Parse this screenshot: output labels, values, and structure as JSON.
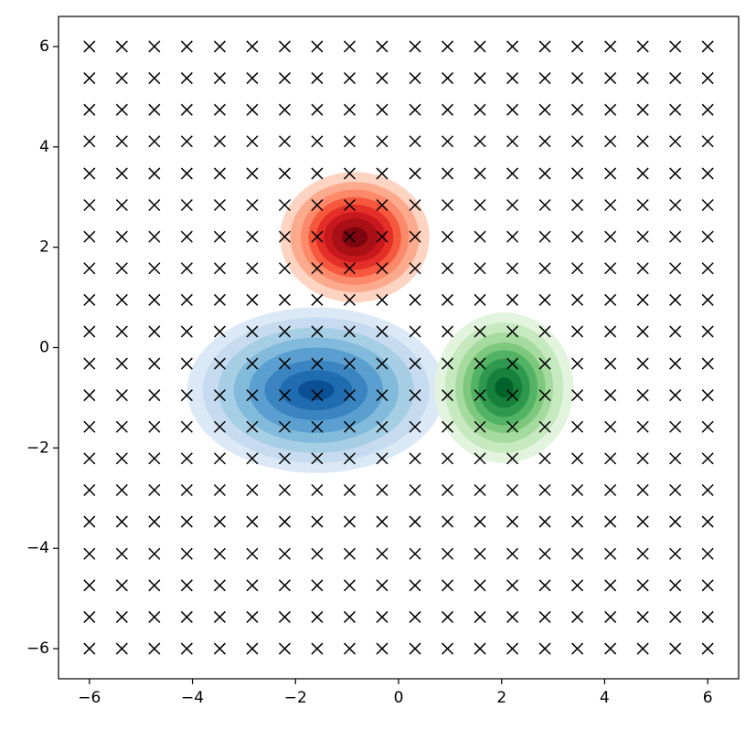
{
  "chart_data": {
    "type": "contour-scatter",
    "xlim": [
      -6.6,
      6.6
    ],
    "ylim": [
      -6.6,
      6.6
    ],
    "xticks": [
      {
        "value": -6,
        "label": "−6"
      },
      {
        "value": -4,
        "label": "−4"
      },
      {
        "value": -2,
        "label": "−2"
      },
      0,
      2,
      4,
      6
    ],
    "yticks": [
      {
        "value": -6,
        "label": "−6"
      },
      {
        "value": -4,
        "label": "−4"
      },
      {
        "value": -2,
        "label": "−2"
      },
      0,
      2,
      4,
      6
    ],
    "grid_points": {
      "marker": "x",
      "color": "#000000",
      "x": [
        -6,
        -5.37,
        -4.74,
        -4.11,
        -3.47,
        -2.84,
        -2.21,
        -1.58,
        -0.95,
        -0.32,
        0.32,
        0.95,
        1.58,
        2.21,
        2.84,
        3.47,
        4.11,
        4.74,
        5.37,
        6
      ],
      "y": [
        -6,
        -5.37,
        -4.74,
        -4.11,
        -3.47,
        -2.84,
        -2.21,
        -1.58,
        -0.95,
        -0.32,
        0.32,
        0.95,
        1.58,
        2.21,
        2.84,
        3.47,
        4.11,
        4.74,
        5.37,
        6
      ]
    },
    "densities": [
      {
        "cx": -1.6,
        "cy": -0.85,
        "rx": [
          2.5,
          2.2,
          1.9,
          1.6,
          1.3,
          1.0,
          0.7,
          0.35
        ],
        "ry": [
          1.65,
          1.45,
          1.25,
          1.05,
          0.85,
          0.6,
          0.4,
          0.2
        ],
        "colors": [
          "#dbe9f6",
          "#c6dbef",
          "#a6cee4",
          "#82badb",
          "#5a9fcf",
          "#3a85c1",
          "#1f6cb1",
          "#0b4f94"
        ]
      },
      {
        "cx": -0.85,
        "cy": 2.2,
        "rx": [
          1.45,
          1.25,
          1.05,
          0.9,
          0.75,
          0.6,
          0.45,
          0.25
        ],
        "ry": [
          1.3,
          1.1,
          0.95,
          0.8,
          0.65,
          0.5,
          0.38,
          0.2
        ],
        "colors": [
          "#fdd4c2",
          "#fcaa8e",
          "#fc8a6a",
          "#f6583e",
          "#e32f27",
          "#c9181d",
          "#a91016",
          "#7f0610"
        ]
      },
      {
        "cx": 2.05,
        "cy": -0.8,
        "rx": [
          1.35,
          1.15,
          0.95,
          0.8,
          0.65,
          0.5,
          0.35,
          0.18
        ],
        "ry": [
          1.5,
          1.3,
          1.1,
          0.9,
          0.75,
          0.58,
          0.4,
          0.2
        ],
        "colors": [
          "#e2f4dd",
          "#c7e9c0",
          "#a6dba0",
          "#7ec87d",
          "#52b365",
          "#2f984f",
          "#17803c",
          "#00642a"
        ]
      }
    ]
  }
}
